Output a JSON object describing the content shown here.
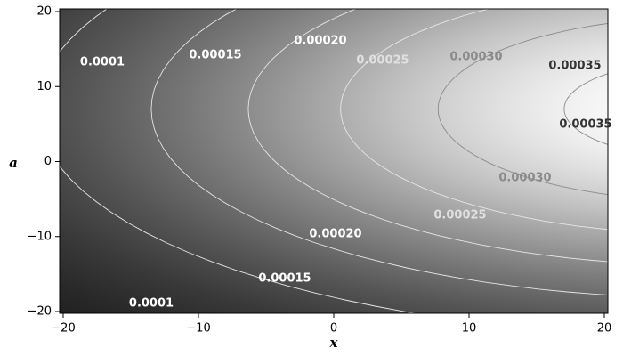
{
  "chart_data": {
    "type": "contour",
    "x_label": "x",
    "y_label": "a",
    "xlim": [
      -20,
      20
    ],
    "ylim": [
      -20,
      20
    ],
    "xticks": [
      {
        "value": -20,
        "label": "−20"
      },
      {
        "value": -10,
        "label": "−10"
      },
      0,
      10,
      20
    ],
    "yticks": [
      {
        "value": -20,
        "label": "−20"
      },
      {
        "value": -10,
        "label": "−10"
      },
      0,
      10,
      20
    ],
    "levels": [
      0.0001,
      0.00015,
      {
        "value": 0.0002,
        "label": "0.00020"
      },
      0.00025,
      {
        "value": 0.0003,
        "label": "0.00030"
      },
      0.00035
    ]
  }
}
